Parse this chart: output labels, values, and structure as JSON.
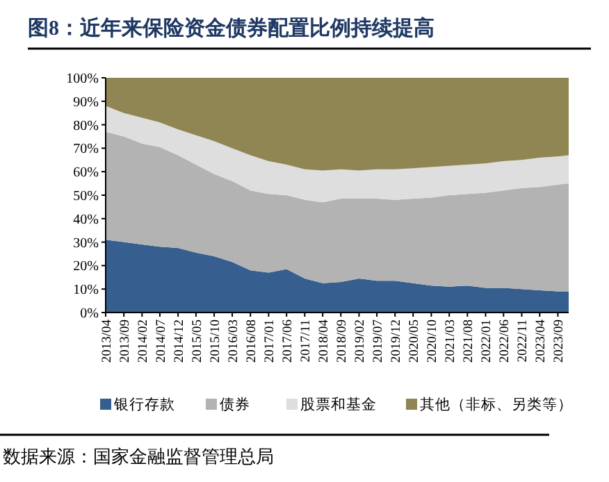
{
  "chart_data": {
    "type": "area",
    "stacked": true,
    "title": "图8：近年来保险资金债券配置比例持续提高",
    "annotations": [
      "数据来源：国家金融监督管理总局"
    ],
    "x": [
      "2013-04",
      "2013-09",
      "2014-02",
      "2014-07",
      "2014-12",
      "2015-05",
      "2015-10",
      "2016-03",
      "2016-08",
      "2017-01",
      "2017-06",
      "2017-11",
      "2018-04",
      "2018-09",
      "2019-02",
      "2019-07",
      "2019-12",
      "2020-05",
      "2020-10",
      "2021-03",
      "2021-08",
      "2022-01",
      "2022-06",
      "2022-11",
      "2023-04",
      "2023-09",
      "2023-12"
    ],
    "series": [
      {
        "name": "银行存款",
        "color": "#365f8f",
        "values": [
          31,
          30,
          29,
          28,
          27.5,
          25.5,
          24,
          21.5,
          18,
          17,
          18.5,
          14.5,
          12.5,
          13,
          14.5,
          13.5,
          13.5,
          12.5,
          11.5,
          11,
          11.5,
          10.5,
          10.5,
          10,
          9.5,
          9,
          9
        ]
      },
      {
        "name": "债券",
        "color": "#b3b3b3",
        "values": [
          46,
          45,
          43,
          42.5,
          39.5,
          37.5,
          35,
          34.5,
          34,
          33.5,
          31.5,
          33.5,
          34.5,
          35.5,
          34,
          35,
          34.5,
          36,
          37.5,
          39,
          39,
          40.5,
          41.5,
          43,
          44,
          45.5,
          46
        ]
      },
      {
        "name": "股票和基金",
        "color": "#dedede",
        "values": [
          11,
          10,
          11,
          10.5,
          11,
          12.5,
          14,
          14,
          15,
          14,
          13,
          13,
          13.5,
          12.5,
          12,
          12.5,
          13,
          13,
          13,
          12.5,
          12.5,
          12.5,
          12.5,
          12,
          12.5,
          12,
          12
        ]
      },
      {
        "name": "其他（非标、另类等）",
        "color": "#8f8653",
        "values": [
          12,
          15,
          17,
          19,
          22,
          24.5,
          27,
          30,
          33,
          35.5,
          37,
          39,
          39.5,
          39,
          39.5,
          39,
          39,
          38.5,
          38,
          37.5,
          37,
          36.5,
          35.5,
          35,
          34,
          33.5,
          33
        ]
      }
    ],
    "xlim": [
      "2013-04",
      "2023-12"
    ],
    "xticks": [
      {
        "value": "2013-04",
        "label": "2013/04"
      },
      {
        "value": "2013-09",
        "label": "2013/09"
      },
      {
        "value": "2014-02",
        "label": "2014/02"
      },
      {
        "value": "2014-07",
        "label": "2014/07"
      },
      {
        "value": "2014-12",
        "label": "2014/12"
      },
      {
        "value": "2015-05",
        "label": "2015/05"
      },
      {
        "value": "2015-10",
        "label": "2015/10"
      },
      {
        "value": "2016-03",
        "label": "2016/03"
      },
      {
        "value": "2016-08",
        "label": "2016/08"
      },
      {
        "value": "2017-01",
        "label": "2017/01"
      },
      {
        "value": "2017-06",
        "label": "2017/06"
      },
      {
        "value": "2017-11",
        "label": "2017/11"
      },
      {
        "value": "2018-04",
        "label": "2018/04"
      },
      {
        "value": "2018-09",
        "label": "2018/09"
      },
      {
        "value": "2019-02",
        "label": "2019/02"
      },
      {
        "value": "2019-07",
        "label": "2019/07"
      },
      {
        "value": "2019-12",
        "label": "2019/12"
      },
      {
        "value": "2020-05",
        "label": "2020/05"
      },
      {
        "value": "2020-10",
        "label": "2020/10"
      },
      {
        "value": "2021-03",
        "label": "2021/03"
      },
      {
        "value": "2021-08",
        "label": "2021/08"
      },
      {
        "value": "2022-01",
        "label": "2022/01"
      },
      {
        "value": "2022-06",
        "label": "2022/06"
      },
      {
        "value": "2022-11",
        "label": "2022/11"
      },
      {
        "value": "2023-04",
        "label": "2023/04"
      },
      {
        "value": "2023-09",
        "label": "2023/09"
      }
    ],
    "ylim": [
      0,
      100
    ],
    "yticks": [
      {
        "value": 0,
        "label": "0%"
      },
      {
        "value": 10,
        "label": "10%"
      },
      {
        "value": 20,
        "label": "20%"
      },
      {
        "value": 30,
        "label": "30%"
      },
      {
        "value": 40,
        "label": "40%"
      },
      {
        "value": 50,
        "label": "50%"
      },
      {
        "value": 60,
        "label": "60%"
      },
      {
        "value": 70,
        "label": "70%"
      },
      {
        "value": 80,
        "label": "80%"
      },
      {
        "value": 90,
        "label": "90%"
      },
      {
        "value": 100,
        "label": "100%"
      }
    ],
    "grid": false,
    "legend": "bottom"
  }
}
